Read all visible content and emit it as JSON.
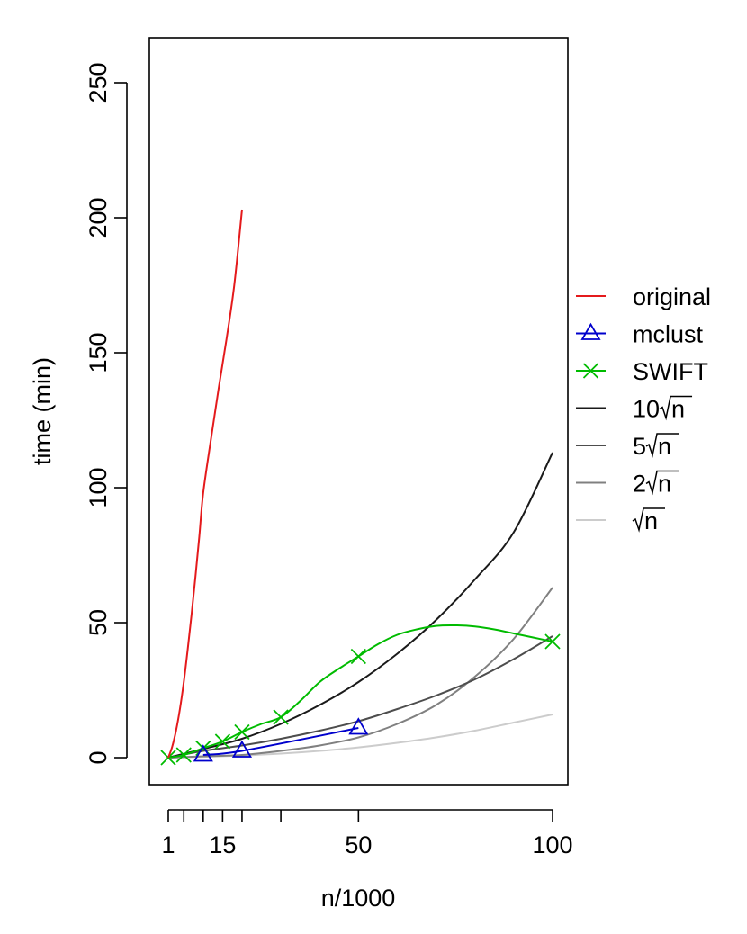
{
  "chart_data": {
    "type": "line",
    "title": "",
    "xlabel": "n/1000",
    "ylabel": "time (min)",
    "xlim": [
      1,
      100
    ],
    "ylim": [
      0,
      250
    ],
    "x_ticks": [
      1,
      5,
      10,
      15,
      20,
      30,
      50,
      100
    ],
    "x_tick_labels": [
      {
        "value": 1,
        "label": "1"
      },
      {
        "value": 15,
        "label": "15"
      },
      {
        "value": 50,
        "label": "50"
      },
      {
        "value": 100,
        "label": "100"
      }
    ],
    "y_ticks": [
      0,
      50,
      100,
      150,
      200,
      250
    ],
    "legend_position": "right",
    "series": [
      {
        "name": "original",
        "color": "#e41a1c",
        "marker": "none",
        "x": [
          1,
          2,
          3,
          4,
          5,
          6,
          7,
          8,
          9,
          10,
          12,
          14,
          16,
          18,
          20
        ],
        "y": [
          0,
          4,
          10,
          18,
          28,
          40,
          53,
          67,
          82,
          98,
          118,
          137,
          155,
          175,
          203
        ]
      },
      {
        "name": "mclust",
        "color": "#0000cc",
        "marker": "triangle",
        "x": [
          10,
          20,
          50
        ],
        "y": [
          1,
          2.5,
          11
        ]
      },
      {
        "name": "SWIFT",
        "color": "#00bb00",
        "marker": "x",
        "x": [
          1,
          5,
          10,
          15,
          20,
          30,
          50,
          100
        ],
        "y": [
          0,
          1,
          3.5,
          6,
          9.5,
          15,
          37.5,
          43
        ],
        "curve_x": [
          1,
          5,
          10,
          15,
          20,
          25,
          30,
          35,
          40,
          45,
          50,
          55,
          60,
          65,
          70,
          75,
          80,
          85,
          90,
          95,
          100
        ],
        "curve_y": [
          0,
          1,
          3.5,
          6,
          9.5,
          12.5,
          15,
          21,
          28,
          33,
          37.5,
          42,
          45.5,
          47.5,
          48.8,
          49,
          48.6,
          47.5,
          46,
          44.5,
          43
        ]
      },
      {
        "name": "10√n",
        "label_prefix": "10",
        "color": "#1a1a1a",
        "marker": "none",
        "x": [
          1,
          10,
          20,
          30,
          40,
          50,
          60,
          70,
          80,
          90,
          100
        ],
        "y": [
          0,
          3.2,
          7,
          12.5,
          19.5,
          28,
          38.5,
          51,
          66,
          83.5,
          113
        ]
      },
      {
        "name": "5√n",
        "label_prefix": "5",
        "color": "#4d4d4d",
        "marker": "none",
        "x": [
          1,
          10,
          20,
          30,
          40,
          50,
          60,
          70,
          80,
          90,
          100
        ],
        "y": [
          0,
          2.5,
          4.5,
          7,
          10,
          13.5,
          18,
          23,
          29,
          36.5,
          45
        ]
      },
      {
        "name": "2√n",
        "label_prefix": "2",
        "color": "#808080",
        "marker": "none",
        "x": [
          1,
          10,
          20,
          30,
          40,
          50,
          60,
          70,
          80,
          90,
          100
        ],
        "y": [
          0,
          0.5,
          1,
          2.5,
          4.5,
          7.5,
          12.5,
          19.5,
          30,
          44,
          63
        ]
      },
      {
        "name": "√n",
        "label_prefix": "",
        "color": "#cccccc",
        "marker": "none",
        "x": [
          1,
          10,
          20,
          30,
          40,
          50,
          60,
          70,
          80,
          90,
          100
        ],
        "y": [
          0,
          0.3,
          0.8,
          1.5,
          2.5,
          3.8,
          5.5,
          7.5,
          10,
          13,
          16
        ]
      }
    ]
  }
}
